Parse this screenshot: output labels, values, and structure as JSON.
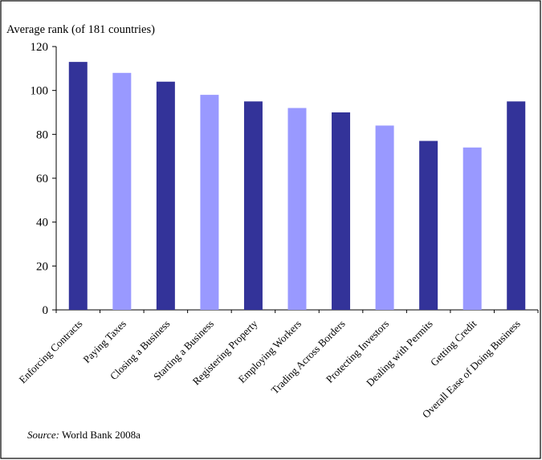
{
  "chart_data": {
    "type": "bar",
    "ylabel": "Average rank (of 181 countries)",
    "ylim": [
      0,
      120
    ],
    "yticks": [
      0,
      20,
      40,
      60,
      80,
      100,
      120
    ],
    "grid": false,
    "categories": [
      "Enforcing Contracts",
      "Paying Taxes",
      "Closing a Business",
      "Starting a Business",
      "Registering Property",
      "Employing Workers",
      "Trading Across Borders",
      "Protecting Investors",
      "Dealing with Permits",
      "Getting Credit",
      "Overall Ease of Doing Business"
    ],
    "values": [
      113,
      108,
      104,
      98,
      95,
      92,
      90,
      84,
      77,
      74,
      95
    ],
    "bar_colors": [
      "#333399",
      "#9999ff",
      "#333399",
      "#9999ff",
      "#333399",
      "#9999ff",
      "#333399",
      "#9999ff",
      "#333399",
      "#9999ff",
      "#333399"
    ]
  },
  "source": {
    "label": "Source:",
    "text": " World Bank 2008a"
  }
}
